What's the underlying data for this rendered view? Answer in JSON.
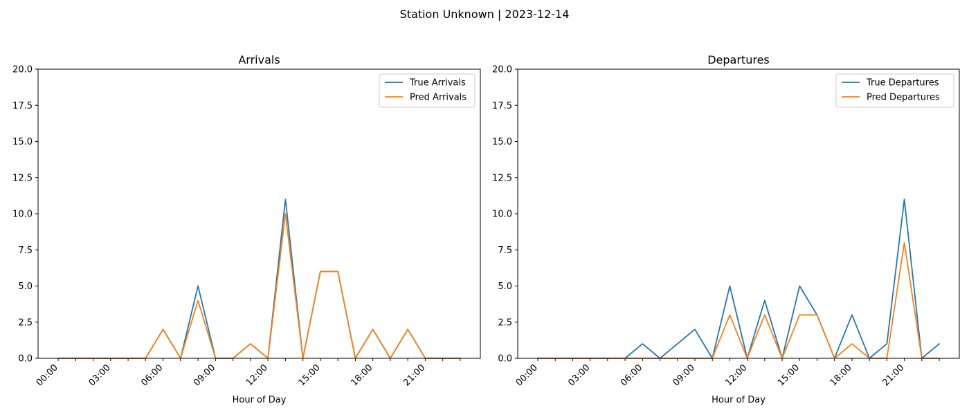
{
  "suptitle": "Station Unknown | 2023-12-14",
  "colors": {
    "true": "#1f77b4",
    "pred": "#ff7f0e"
  },
  "chart_data": [
    {
      "type": "line",
      "title": "Arrivals",
      "xlabel": "Hour of Day",
      "ylabel": "",
      "ylim": [
        0,
        20
      ],
      "yticks": [
        "0.0",
        "2.5",
        "5.0",
        "7.5",
        "10.0",
        "12.5",
        "15.0",
        "17.5",
        "20.0"
      ],
      "xticks": [
        "00:00",
        "03:00",
        "06:00",
        "09:00",
        "12:00",
        "15:00",
        "18:00",
        "21:00"
      ],
      "legend": "top-right",
      "x": [
        0,
        1,
        2,
        3,
        4,
        5,
        6,
        7,
        8,
        9,
        10,
        11,
        12,
        13,
        14,
        15,
        16,
        17,
        18,
        19,
        20,
        21,
        22,
        23
      ],
      "series": [
        {
          "name": "True Arrivals",
          "values": [
            0,
            0,
            0,
            0,
            0,
            0,
            2,
            0,
            5,
            0,
            0,
            1,
            0,
            11,
            0,
            6,
            6,
            0,
            2,
            0,
            2,
            0,
            0,
            0
          ]
        },
        {
          "name": "Pred Arrivals",
          "values": [
            0,
            0,
            0,
            0,
            0,
            0,
            2,
            0,
            4,
            0,
            0,
            1,
            0,
            10,
            0,
            6,
            6,
            0,
            2,
            0,
            2,
            0,
            0,
            0
          ]
        }
      ]
    },
    {
      "type": "line",
      "title": "Departures",
      "xlabel": "Hour of Day",
      "ylabel": "",
      "ylim": [
        0,
        20
      ],
      "yticks": [
        "0.0",
        "2.5",
        "5.0",
        "7.5",
        "10.0",
        "12.5",
        "15.0",
        "17.5",
        "20.0"
      ],
      "xticks": [
        "00:00",
        "03:00",
        "06:00",
        "09:00",
        "12:00",
        "15:00",
        "18:00",
        "21:00"
      ],
      "legend": "top-right",
      "x": [
        0,
        1,
        2,
        3,
        4,
        5,
        6,
        7,
        8,
        9,
        10,
        11,
        12,
        13,
        14,
        15,
        16,
        17,
        18,
        19,
        20,
        21,
        22,
        23
      ],
      "series": [
        {
          "name": "True Departures",
          "values": [
            0,
            0,
            0,
            0,
            0,
            0,
            1,
            0,
            1,
            2,
            0,
            5,
            0,
            4,
            0,
            5,
            3,
            0,
            3,
            0,
            1,
            11,
            0,
            1
          ]
        },
        {
          "name": "Pred Departures",
          "values": [
            0,
            0,
            0,
            0,
            0,
            0,
            0,
            0,
            0,
            0,
            0,
            3,
            0,
            3,
            0,
            3,
            3,
            0,
            1,
            0,
            0,
            8,
            0,
            0
          ]
        }
      ]
    }
  ]
}
